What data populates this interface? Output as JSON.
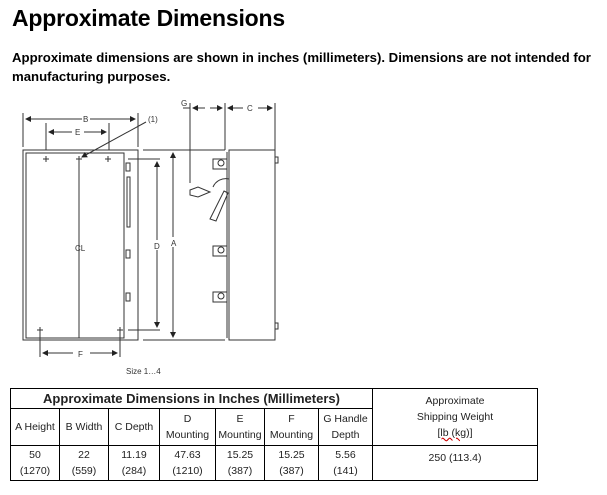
{
  "title": "Approximate Dimensions",
  "intro": "Approximate dimensions are shown in inches (millimeters). Dimensions are not intended for manufacturing purposes.",
  "drawing": {
    "labels": {
      "A": "A",
      "B": "B",
      "C": "C",
      "D": "D",
      "E": "E",
      "F": "F",
      "G": "G",
      "note": "(1)",
      "centerline": "CL"
    },
    "caption": "Size 1…4"
  },
  "table": {
    "group_header": "Approximate Dimensions in Inches (Millimeters)",
    "weight_header": [
      "Approximate",
      "Shipping Weight",
      "[lb (kg)]"
    ],
    "columns": [
      [
        "A Height"
      ],
      [
        "B Width"
      ],
      [
        "C Depth"
      ],
      [
        "D",
        "Mounting"
      ],
      [
        "E",
        "Mounting"
      ],
      [
        "F",
        "Mounting"
      ],
      [
        "G Handle",
        "Depth"
      ]
    ],
    "values": [
      [
        "50",
        "(1270)"
      ],
      [
        "22",
        "(559)"
      ],
      [
        "11.19",
        "(284)"
      ],
      [
        "47.63",
        "(1210)"
      ],
      [
        "15.25",
        "(387)"
      ],
      [
        "15.25",
        "(387)"
      ],
      [
        "5.56",
        "(141)"
      ]
    ],
    "weight": "250 (113.4)"
  }
}
